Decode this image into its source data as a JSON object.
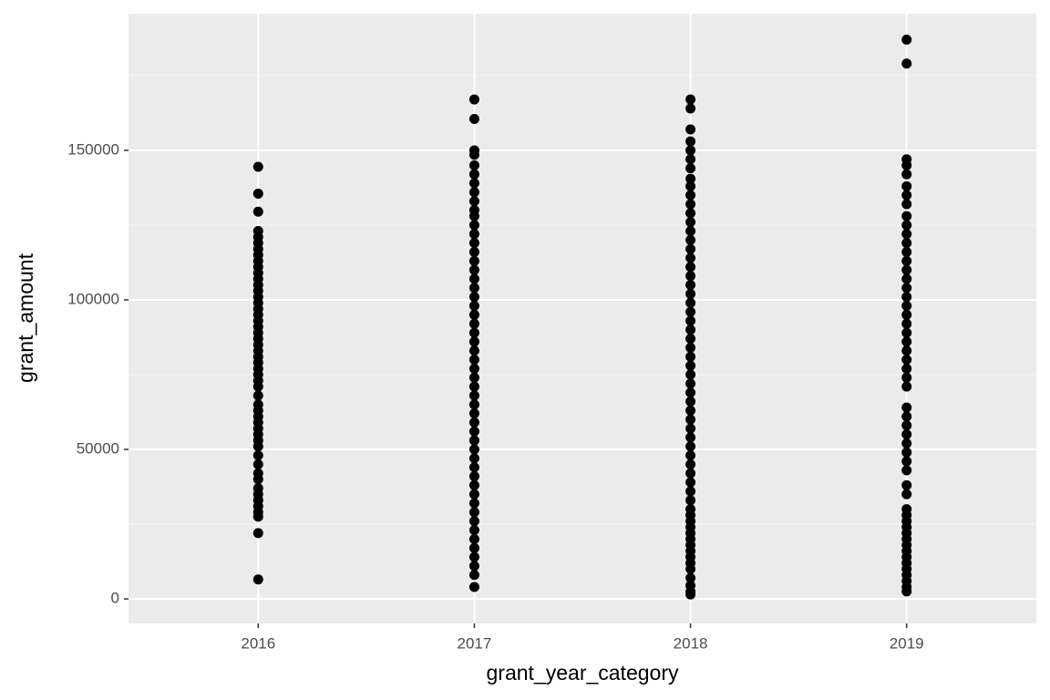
{
  "chart_data": {
    "type": "strip",
    "x_label": "grant_year_category",
    "y_label": "grant_amount",
    "categories": [
      "2016",
      "2017",
      "2018",
      "2019"
    ],
    "color": "#000000",
    "ylim": [
      -8200,
      195700
    ],
    "yticks": [
      0,
      50000,
      100000,
      150000
    ],
    "minor_yticks": [
      25000,
      75000,
      125000,
      175000
    ],
    "grid": true,
    "values": [
      [
        144500,
        135500,
        129500,
        123000,
        121000,
        119000,
        117000,
        115000,
        113000,
        111000,
        109000,
        107000,
        105000,
        103000,
        101000,
        99000,
        97000,
        95000,
        93000,
        91000,
        89000,
        87000,
        85000,
        83000,
        81000,
        79000,
        77000,
        75000,
        73000,
        71000,
        68000,
        65000,
        63000,
        61000,
        59000,
        57000,
        55000,
        53000,
        51000,
        48000,
        45000,
        42000,
        40000,
        37000,
        35000,
        33000,
        31000,
        29000,
        27500,
        22000,
        6500
      ],
      [
        167000,
        160500,
        150000,
        148500,
        145000,
        142000,
        139000,
        136000,
        133000,
        130000,
        128000,
        125000,
        122000,
        119000,
        116000,
        113000,
        110000,
        107000,
        104000,
        101000,
        98000,
        95000,
        92000,
        89000,
        86000,
        83000,
        80000,
        77000,
        74000,
        71000,
        68000,
        65000,
        62000,
        59000,
        56000,
        53000,
        50000,
        47000,
        44000,
        41000,
        38000,
        35000,
        32000,
        29000,
        26000,
        23000,
        20000,
        17000,
        14000,
        11000,
        8000,
        4000
      ],
      [
        167000,
        164000,
        157000,
        153000,
        150000,
        147000,
        144000,
        140500,
        138000,
        135000,
        132000,
        129000,
        126000,
        123000,
        120000,
        117000,
        114000,
        111000,
        108000,
        105000,
        102000,
        99000,
        96000,
        93000,
        90000,
        87000,
        84000,
        81000,
        78000,
        75000,
        72000,
        69000,
        66000,
        63000,
        60000,
        57000,
        54000,
        51000,
        48000,
        45000,
        42000,
        39000,
        36000,
        33000,
        30000,
        28000,
        26000,
        24000,
        22000,
        20000,
        18000,
        16000,
        14000,
        12000,
        10000,
        7000,
        4500,
        2500,
        1500
      ],
      [
        187000,
        179000,
        147000,
        145000,
        142000,
        138000,
        135000,
        132000,
        128000,
        125000,
        122000,
        119000,
        116000,
        113000,
        110000,
        107000,
        104000,
        101000,
        98000,
        95000,
        92000,
        89000,
        86000,
        83000,
        80000,
        77000,
        74000,
        71000,
        64000,
        61000,
        58000,
        55000,
        52000,
        49000,
        46000,
        43000,
        38000,
        35000,
        30000,
        28000,
        26000,
        24000,
        22000,
        20000,
        18000,
        16000,
        14000,
        12000,
        10000,
        8000,
        6000,
        4000,
        2500
      ]
    ]
  }
}
